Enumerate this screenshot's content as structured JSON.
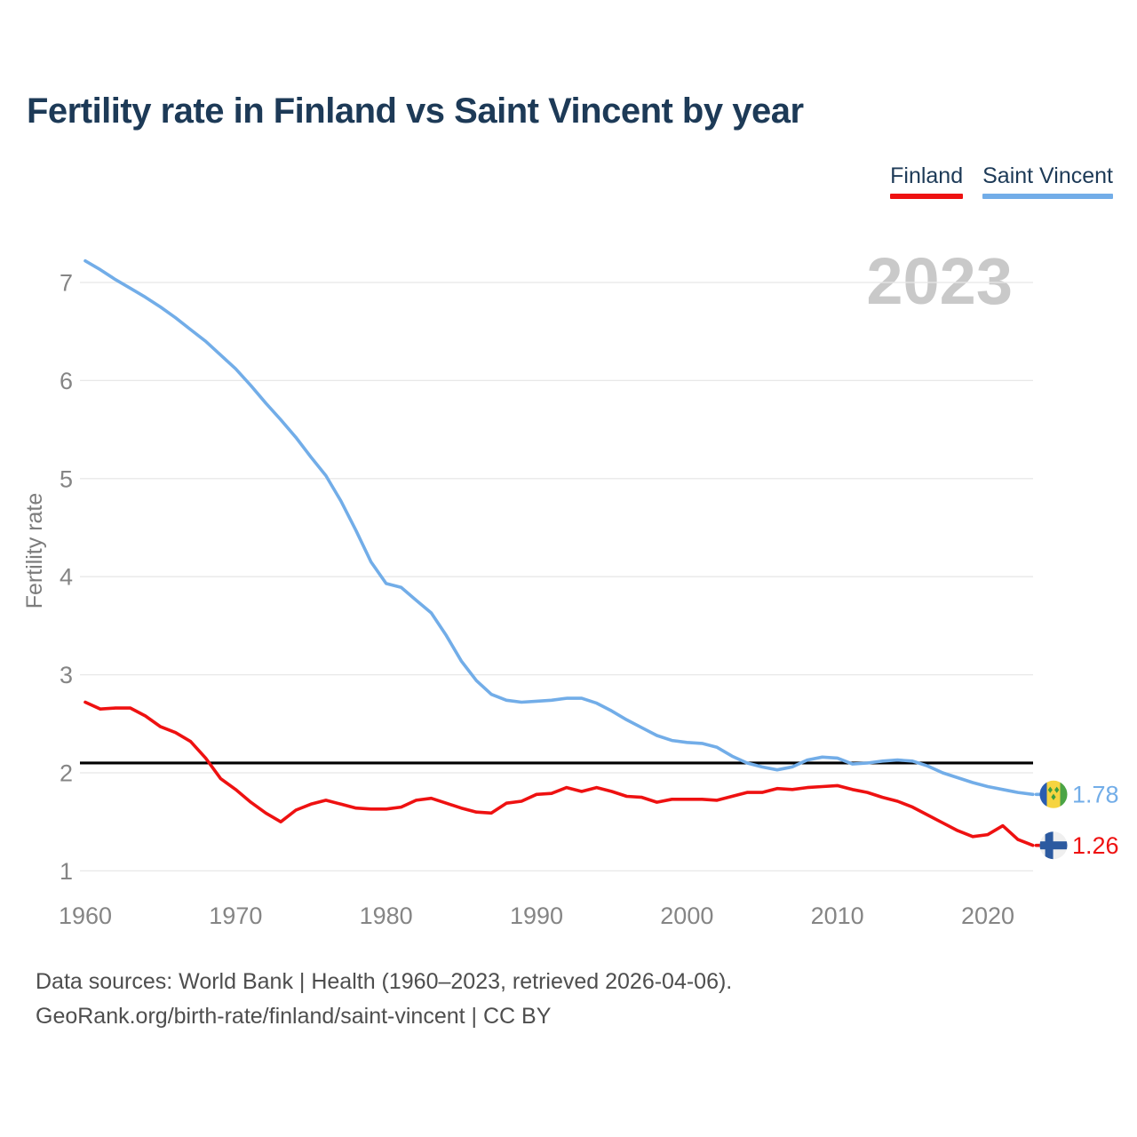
{
  "header": {
    "title": "Fertility rate in Finland vs Saint Vincent by year"
  },
  "legend": {
    "items": [
      {
        "label": "Finland",
        "color": "#ee1111"
      },
      {
        "label": "Saint Vincent",
        "color": "#72ade8"
      }
    ]
  },
  "watermark": {
    "text": "2023",
    "color": "#c9c9c9"
  },
  "axes": {
    "y_label": "Fertility rate"
  },
  "chart_data": {
    "type": "line",
    "title": "Fertility rate in Finland vs Saint Vincent by year",
    "xlabel": "",
    "ylabel": "Fertility rate",
    "grid": true,
    "legend_position": "top-right",
    "xlim": [
      1960,
      2023
    ],
    "ylim": [
      1,
      7.3
    ],
    "x_ticks": [
      1960,
      1970,
      1980,
      1990,
      2000,
      2010,
      2020
    ],
    "y_ticks": [
      1,
      2,
      3,
      4,
      5,
      6,
      7
    ],
    "reference_line": {
      "value": 2.1,
      "color": "#000000"
    },
    "x": [
      1960,
      1961,
      1962,
      1963,
      1964,
      1965,
      1966,
      1967,
      1968,
      1969,
      1970,
      1971,
      1972,
      1973,
      1974,
      1975,
      1976,
      1977,
      1978,
      1979,
      1980,
      1981,
      1982,
      1983,
      1984,
      1985,
      1986,
      1987,
      1988,
      1989,
      1990,
      1991,
      1992,
      1993,
      1994,
      1995,
      1996,
      1997,
      1998,
      1999,
      2000,
      2001,
      2002,
      2003,
      2004,
      2005,
      2006,
      2007,
      2008,
      2009,
      2010,
      2011,
      2012,
      2013,
      2014,
      2015,
      2016,
      2017,
      2018,
      2019,
      2020,
      2021,
      2022,
      2023
    ],
    "series": [
      {
        "name": "Finland",
        "color": "#ee1111",
        "end_label": "1.26",
        "flag": "finland-flag",
        "values": [
          2.72,
          2.65,
          2.66,
          2.66,
          2.58,
          2.47,
          2.41,
          2.32,
          2.15,
          1.94,
          1.83,
          1.7,
          1.59,
          1.5,
          1.62,
          1.68,
          1.72,
          1.68,
          1.64,
          1.63,
          1.63,
          1.65,
          1.72,
          1.74,
          1.69,
          1.64,
          1.6,
          1.59,
          1.69,
          1.71,
          1.78,
          1.79,
          1.85,
          1.81,
          1.85,
          1.81,
          1.76,
          1.75,
          1.7,
          1.73,
          1.73,
          1.73,
          1.72,
          1.76,
          1.8,
          1.8,
          1.84,
          1.83,
          1.85,
          1.86,
          1.87,
          1.83,
          1.8,
          1.75,
          1.71,
          1.65,
          1.57,
          1.49,
          1.41,
          1.35,
          1.37,
          1.46,
          1.32,
          1.26
        ]
      },
      {
        "name": "Saint Vincent",
        "color": "#72ade8",
        "end_label": "1.78",
        "flag": "saint-vincent-flag",
        "values": [
          7.22,
          7.13,
          7.03,
          6.94,
          6.85,
          6.75,
          6.64,
          6.52,
          6.4,
          6.26,
          6.12,
          5.95,
          5.77,
          5.6,
          5.42,
          5.22,
          5.03,
          4.77,
          4.47,
          4.15,
          3.93,
          3.89,
          3.76,
          3.63,
          3.4,
          3.14,
          2.94,
          2.8,
          2.74,
          2.72,
          2.73,
          2.74,
          2.76,
          2.76,
          2.71,
          2.63,
          2.54,
          2.46,
          2.38,
          2.33,
          2.31,
          2.3,
          2.26,
          2.17,
          2.1,
          2.06,
          2.03,
          2.06,
          2.13,
          2.16,
          2.15,
          2.09,
          2.1,
          2.12,
          2.13,
          2.12,
          2.07,
          2.0,
          1.95,
          1.9,
          1.86,
          1.83,
          1.8,
          1.78
        ]
      }
    ]
  },
  "footer": {
    "line1": "Data sources: World Bank | Health (1960–2023, retrieved 2026-04-06).",
    "line2": "GeoRank.org/birth-rate/finland/saint-vincent | CC BY"
  }
}
